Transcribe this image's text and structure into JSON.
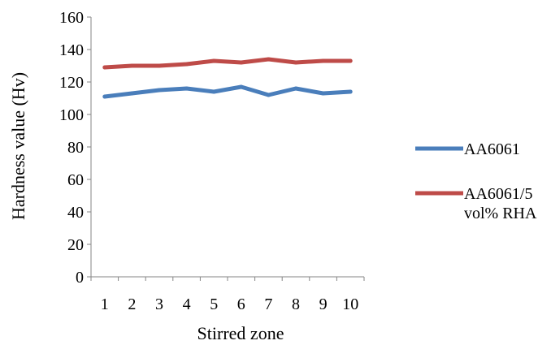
{
  "chart_data": {
    "type": "line",
    "title": "",
    "xlabel": "Stirred zone",
    "ylabel": "Hardness value (Hv)",
    "categories": [
      "1",
      "2",
      "3",
      "4",
      "5",
      "6",
      "7",
      "8",
      "9",
      "10"
    ],
    "ylim": [
      0,
      160
    ],
    "yticks": [
      0,
      20,
      40,
      60,
      80,
      100,
      120,
      140,
      160
    ],
    "grid": false,
    "legend_position": "right",
    "series": [
      {
        "name": "AA6061",
        "legend_lines": [
          "AA6061"
        ],
        "color": "#4a7ebb",
        "values": [
          111,
          113,
          115,
          116,
          114,
          117,
          112,
          116,
          113,
          114
        ]
      },
      {
        "name": "AA6061/5 vol% RHA",
        "legend_lines": [
          "AA6061/5",
          "vol% RHA"
        ],
        "color": "#be4b48",
        "values": [
          129,
          130,
          130,
          131,
          133,
          132,
          134,
          132,
          133,
          133
        ]
      }
    ]
  }
}
